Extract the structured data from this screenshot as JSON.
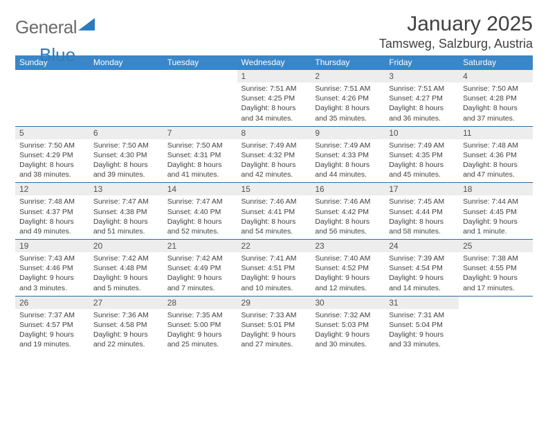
{
  "logo": {
    "general": "General",
    "blue": "Blue"
  },
  "title": "January 2025",
  "location": "Tamsweg, Salzburg, Austria",
  "colors": {
    "header_bg": "#3a86c8",
    "header_text": "#ffffff",
    "daynum_bg": "#ededed",
    "border": "#2b6aa3",
    "text": "#404040",
    "logo_gray": "#6a6a6a",
    "logo_blue": "#2b7bbf"
  },
  "fonts": {
    "title_size_pt": 23,
    "location_size_pt": 13.5,
    "header_size_pt": 9,
    "daynum_size_pt": 9,
    "cell_size_pt": 8
  },
  "weekdays": [
    "Sunday",
    "Monday",
    "Tuesday",
    "Wednesday",
    "Thursday",
    "Friday",
    "Saturday"
  ],
  "weeks": [
    [
      null,
      null,
      null,
      {
        "n": "1",
        "sr": "7:51 AM",
        "ss": "4:25 PM",
        "dl": "8 hours and 34 minutes."
      },
      {
        "n": "2",
        "sr": "7:51 AM",
        "ss": "4:26 PM",
        "dl": "8 hours and 35 minutes."
      },
      {
        "n": "3",
        "sr": "7:51 AM",
        "ss": "4:27 PM",
        "dl": "8 hours and 36 minutes."
      },
      {
        "n": "4",
        "sr": "7:50 AM",
        "ss": "4:28 PM",
        "dl": "8 hours and 37 minutes."
      }
    ],
    [
      {
        "n": "5",
        "sr": "7:50 AM",
        "ss": "4:29 PM",
        "dl": "8 hours and 38 minutes."
      },
      {
        "n": "6",
        "sr": "7:50 AM",
        "ss": "4:30 PM",
        "dl": "8 hours and 39 minutes."
      },
      {
        "n": "7",
        "sr": "7:50 AM",
        "ss": "4:31 PM",
        "dl": "8 hours and 41 minutes."
      },
      {
        "n": "8",
        "sr": "7:49 AM",
        "ss": "4:32 PM",
        "dl": "8 hours and 42 minutes."
      },
      {
        "n": "9",
        "sr": "7:49 AM",
        "ss": "4:33 PM",
        "dl": "8 hours and 44 minutes."
      },
      {
        "n": "10",
        "sr": "7:49 AM",
        "ss": "4:35 PM",
        "dl": "8 hours and 45 minutes."
      },
      {
        "n": "11",
        "sr": "7:48 AM",
        "ss": "4:36 PM",
        "dl": "8 hours and 47 minutes."
      }
    ],
    [
      {
        "n": "12",
        "sr": "7:48 AM",
        "ss": "4:37 PM",
        "dl": "8 hours and 49 minutes."
      },
      {
        "n": "13",
        "sr": "7:47 AM",
        "ss": "4:38 PM",
        "dl": "8 hours and 51 minutes."
      },
      {
        "n": "14",
        "sr": "7:47 AM",
        "ss": "4:40 PM",
        "dl": "8 hours and 52 minutes."
      },
      {
        "n": "15",
        "sr": "7:46 AM",
        "ss": "4:41 PM",
        "dl": "8 hours and 54 minutes."
      },
      {
        "n": "16",
        "sr": "7:46 AM",
        "ss": "4:42 PM",
        "dl": "8 hours and 56 minutes."
      },
      {
        "n": "17",
        "sr": "7:45 AM",
        "ss": "4:44 PM",
        "dl": "8 hours and 58 minutes."
      },
      {
        "n": "18",
        "sr": "7:44 AM",
        "ss": "4:45 PM",
        "dl": "9 hours and 1 minute."
      }
    ],
    [
      {
        "n": "19",
        "sr": "7:43 AM",
        "ss": "4:46 PM",
        "dl": "9 hours and 3 minutes."
      },
      {
        "n": "20",
        "sr": "7:42 AM",
        "ss": "4:48 PM",
        "dl": "9 hours and 5 minutes."
      },
      {
        "n": "21",
        "sr": "7:42 AM",
        "ss": "4:49 PM",
        "dl": "9 hours and 7 minutes."
      },
      {
        "n": "22",
        "sr": "7:41 AM",
        "ss": "4:51 PM",
        "dl": "9 hours and 10 minutes."
      },
      {
        "n": "23",
        "sr": "7:40 AM",
        "ss": "4:52 PM",
        "dl": "9 hours and 12 minutes."
      },
      {
        "n": "24",
        "sr": "7:39 AM",
        "ss": "4:54 PM",
        "dl": "9 hours and 14 minutes."
      },
      {
        "n": "25",
        "sr": "7:38 AM",
        "ss": "4:55 PM",
        "dl": "9 hours and 17 minutes."
      }
    ],
    [
      {
        "n": "26",
        "sr": "7:37 AM",
        "ss": "4:57 PM",
        "dl": "9 hours and 19 minutes."
      },
      {
        "n": "27",
        "sr": "7:36 AM",
        "ss": "4:58 PM",
        "dl": "9 hours and 22 minutes."
      },
      {
        "n": "28",
        "sr": "7:35 AM",
        "ss": "5:00 PM",
        "dl": "9 hours and 25 minutes."
      },
      {
        "n": "29",
        "sr": "7:33 AM",
        "ss": "5:01 PM",
        "dl": "9 hours and 27 minutes."
      },
      {
        "n": "30",
        "sr": "7:32 AM",
        "ss": "5:03 PM",
        "dl": "9 hours and 30 minutes."
      },
      {
        "n": "31",
        "sr": "7:31 AM",
        "ss": "5:04 PM",
        "dl": "9 hours and 33 minutes."
      },
      null
    ]
  ],
  "labels": {
    "sunrise": "Sunrise:",
    "sunset": "Sunset:",
    "daylight": "Daylight:"
  }
}
